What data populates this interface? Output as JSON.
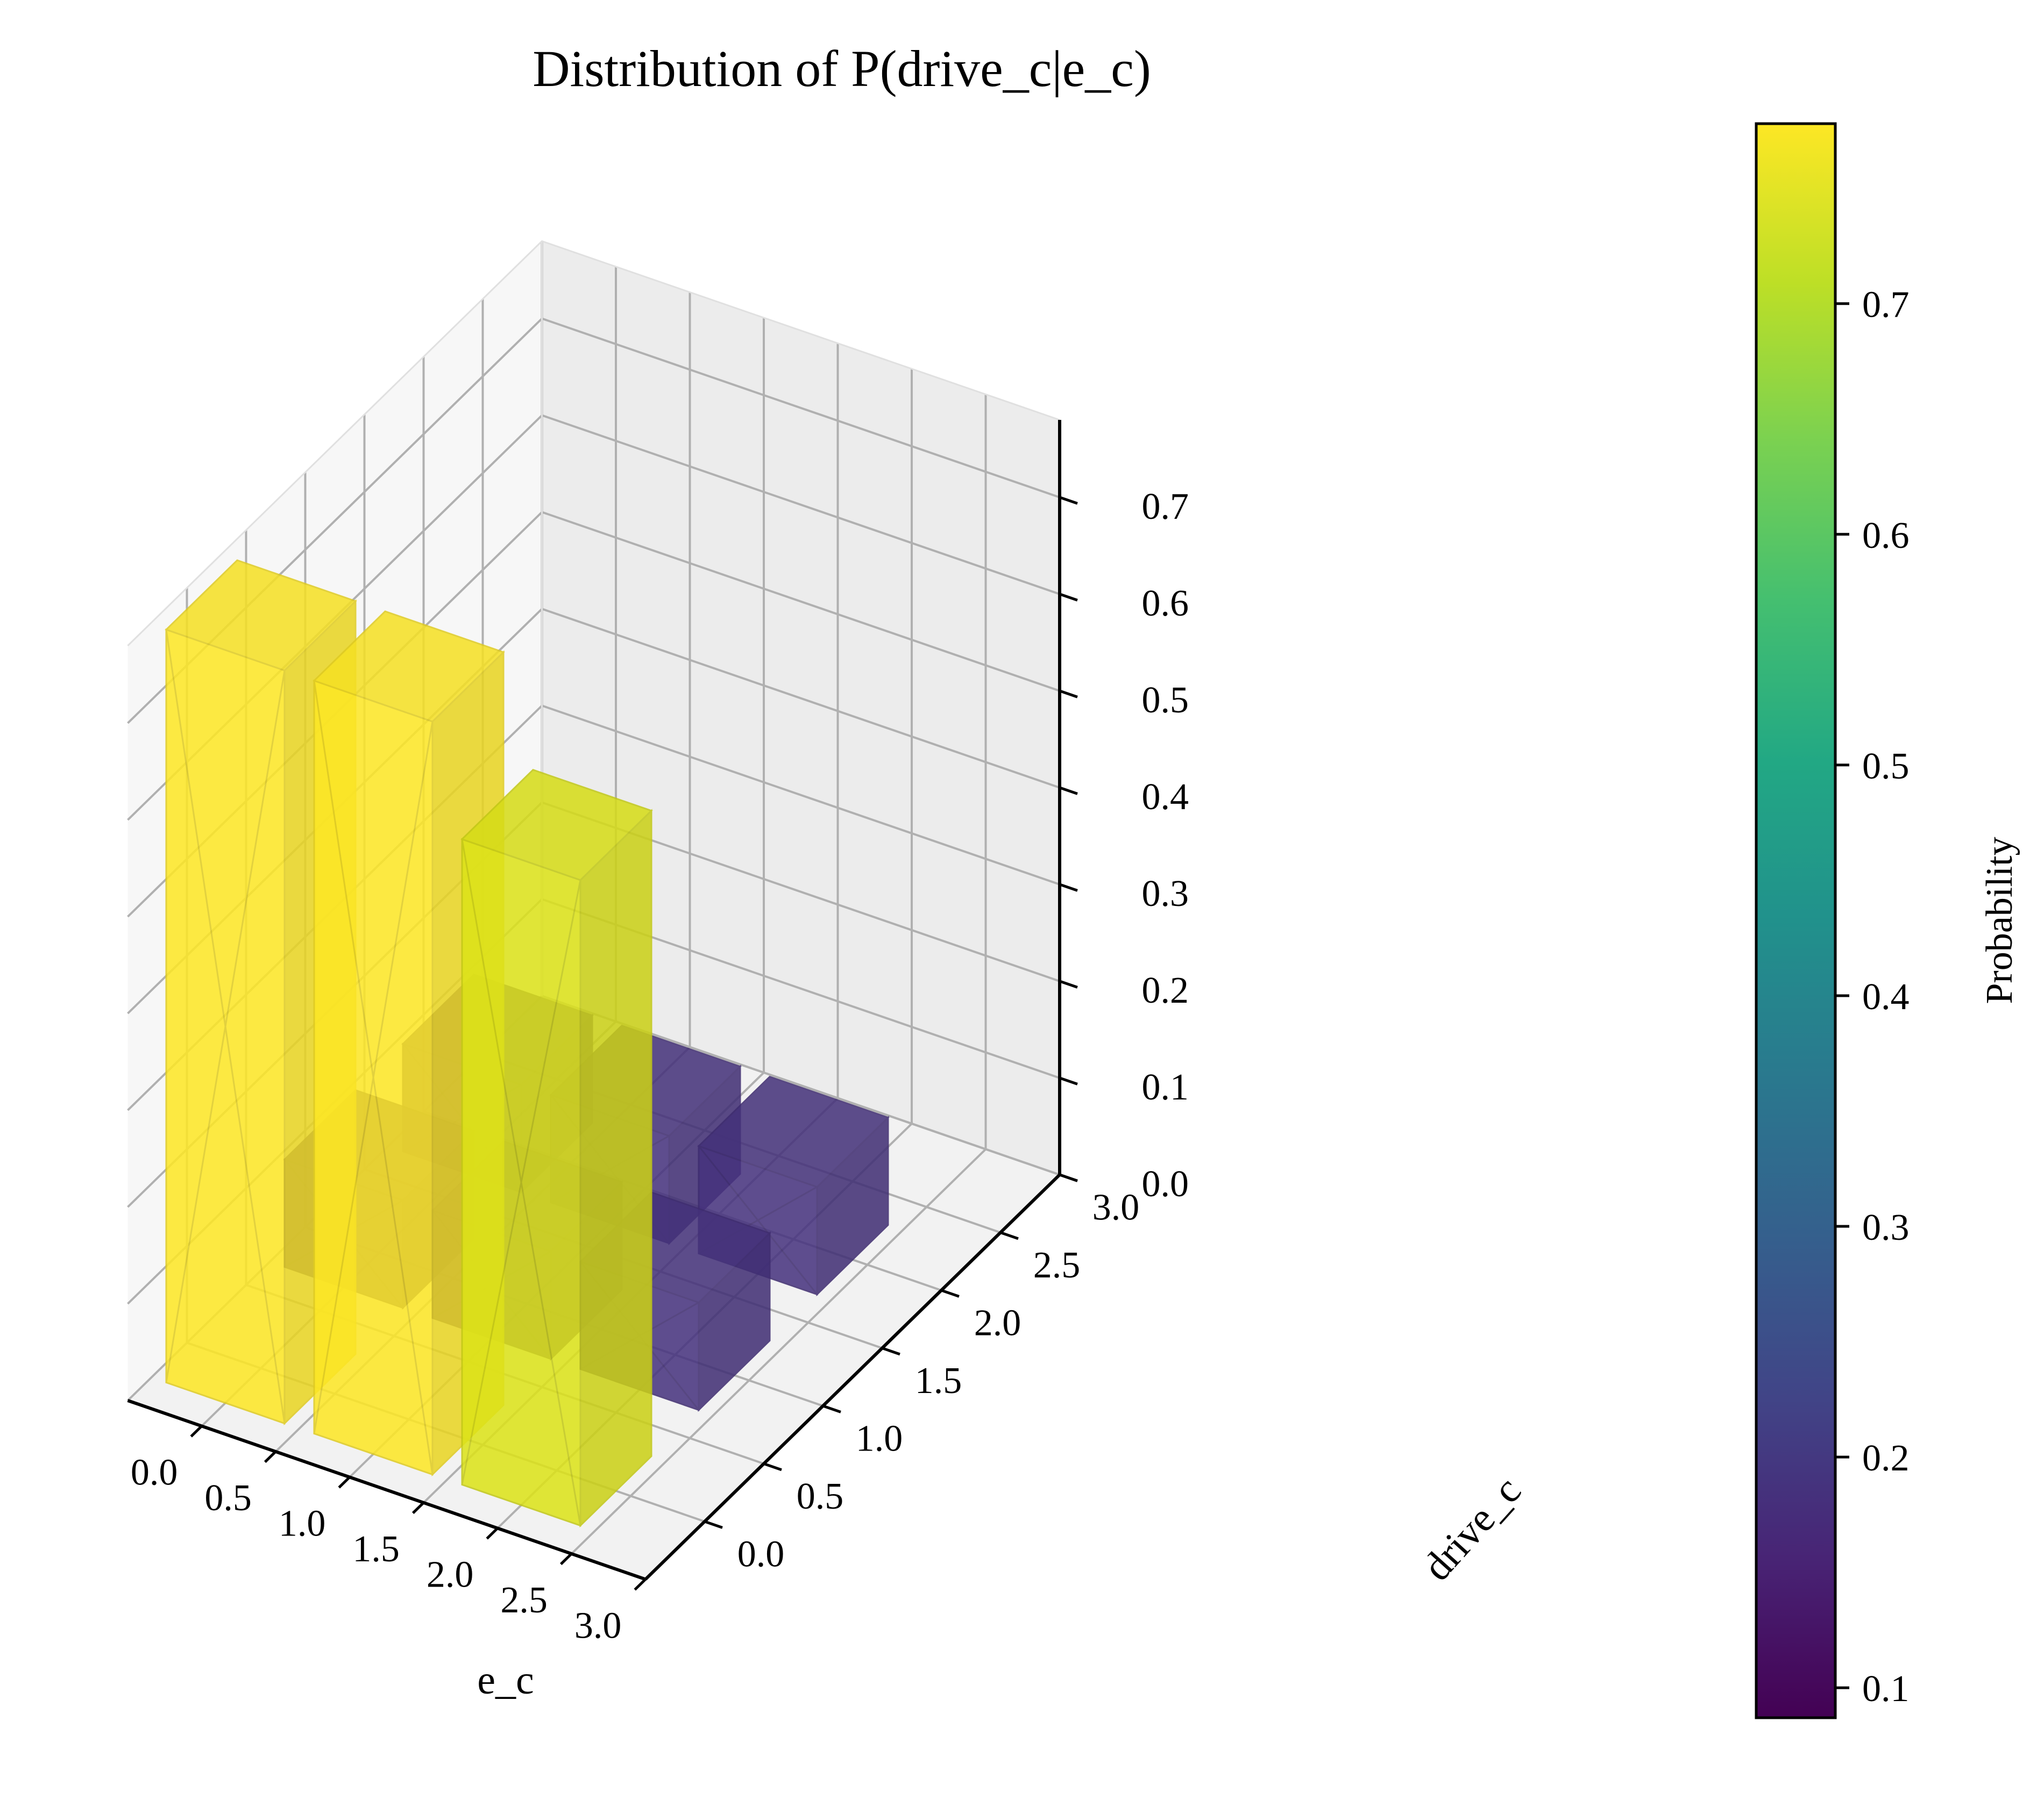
{
  "chart_data": {
    "type": "bar3d",
    "title": "Distribution of P(drive_c|e_c)",
    "xlabel": "e_c",
    "ylabel": "drive_c",
    "zlabel": "",
    "xlim": [
      0,
      3
    ],
    "ylim": [
      0,
      3
    ],
    "zlim": [
      0,
      0.78
    ],
    "xticks": [
      "0.0",
      "0.5",
      "1.0",
      "1.5",
      "2.0",
      "2.5",
      "3.0"
    ],
    "yticks": [
      "0.0",
      "0.5",
      "1.0",
      "1.5",
      "2.0",
      "2.5",
      "3.0"
    ],
    "zticks": [
      "0.0",
      "0.1",
      "0.2",
      "0.3",
      "0.4",
      "0.5",
      "0.6",
      "0.7"
    ],
    "grid": true,
    "colormap": "viridis",
    "colorbar": {
      "label": "Probability",
      "min": 0.087,
      "max": 0.778,
      "ticks": [
        "0.1",
        "0.2",
        "0.3",
        "0.4",
        "0.5",
        "0.6",
        "0.7"
      ]
    },
    "bars": [
      {
        "e_c": 0,
        "drive_c": 0,
        "value": 0.778,
        "color": "#fde725"
      },
      {
        "e_c": 0,
        "drive_c": 1,
        "value": 0.111,
        "color": "#46327e"
      },
      {
        "e_c": 0,
        "drive_c": 2,
        "value": 0.111,
        "color": "#46327e"
      },
      {
        "e_c": 1,
        "drive_c": 0,
        "value": 0.778,
        "color": "#fde725"
      },
      {
        "e_c": 1,
        "drive_c": 1,
        "value": 0.111,
        "color": "#46327e"
      },
      {
        "e_c": 1,
        "drive_c": 2,
        "value": 0.111,
        "color": "#46327e"
      },
      {
        "e_c": 2,
        "drive_c": 0,
        "value": 0.667,
        "color": "#dde318"
      },
      {
        "e_c": 2,
        "drive_c": 1,
        "value": 0.111,
        "color": "#46327e"
      },
      {
        "e_c": 2,
        "drive_c": 2,
        "value": 0.111,
        "color": "#46327e"
      }
    ]
  }
}
